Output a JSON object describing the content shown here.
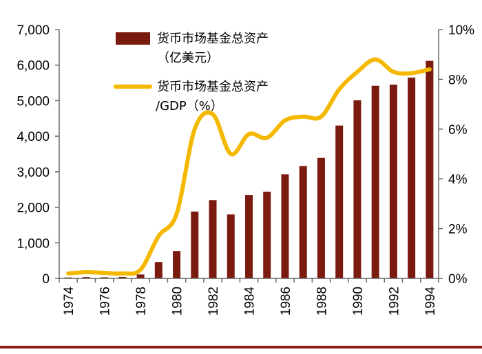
{
  "chart_data": {
    "type": "bar",
    "categories": [
      "1974",
      "1975",
      "1976",
      "1977",
      "1978",
      "1979",
      "1980",
      "1981",
      "1982",
      "1983",
      "1984",
      "1985",
      "1986",
      "1987",
      "1988",
      "1989",
      "1990",
      "1991",
      "1992",
      "1993",
      "1994"
    ],
    "x_tick_labels": [
      "1974",
      "1976",
      "1978",
      "1980",
      "1982",
      "1984",
      "1986",
      "1988",
      "1990",
      "1992",
      "1994"
    ],
    "series": [
      {
        "name": "货币市场基金总资产（亿美元）",
        "legend_lines": [
          "货币市场基金总资产",
          "（亿美元）"
        ],
        "type": "bar",
        "axis": "left",
        "color": "#7B1A0E",
        "values": [
          25,
          35,
          30,
          40,
          110,
          460,
          770,
          1880,
          2200,
          1800,
          2340,
          2440,
          2930,
          3160,
          3390,
          4300,
          5010,
          5420,
          5450,
          5650,
          6120
        ]
      },
      {
        "name": "货币市场基金总资产/GDP（%）",
        "legend_lines": [
          "货币市场基金总资产",
          "/GDP（%）"
        ],
        "type": "line",
        "axis": "right",
        "color": "#F5B800",
        "values": [
          0.2,
          0.25,
          0.22,
          0.2,
          0.35,
          1.7,
          2.6,
          6.0,
          6.6,
          5.0,
          5.8,
          5.65,
          6.35,
          6.5,
          6.5,
          7.6,
          8.3,
          8.8,
          8.3,
          8.25,
          8.4
        ]
      }
    ],
    "y_left": {
      "ylim": [
        0,
        7000
      ],
      "tick_labels": [
        "0",
        "1,000",
        "2,000",
        "3,000",
        "4,000",
        "5,000",
        "6,000",
        "7,000"
      ]
    },
    "y_right": {
      "ylim": [
        0,
        10
      ],
      "tick_labels": [
        "0%",
        "2%",
        "4%",
        "6%",
        "8%",
        "10%"
      ]
    },
    "xlabel": "",
    "ylabel": "",
    "title": "",
    "legend_position": "top-left",
    "grid": false
  }
}
